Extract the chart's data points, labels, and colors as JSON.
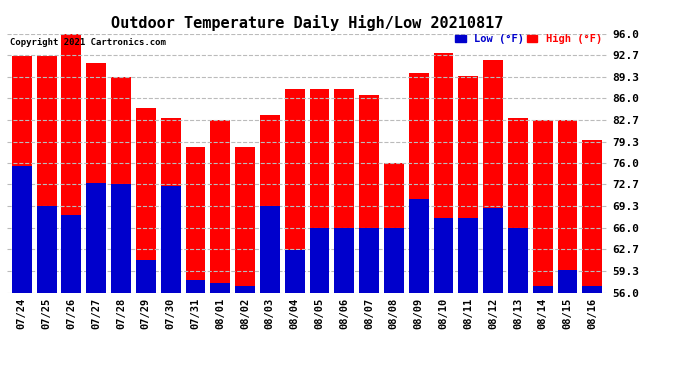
{
  "title": "Outdoor Temperature Daily High/Low 20210817",
  "copyright_text": "Copyright 2021 Cartronics.com",
  "legend_low_label": "Low (°F)",
  "legend_high_label": "High (°F)",
  "dates": [
    "07/24",
    "07/25",
    "07/26",
    "07/27",
    "07/28",
    "07/29",
    "07/30",
    "07/31",
    "08/01",
    "08/02",
    "08/03",
    "08/04",
    "08/05",
    "08/06",
    "08/07",
    "08/08",
    "08/09",
    "08/10",
    "08/11",
    "08/12",
    "08/13",
    "08/14",
    "08/15",
    "08/16"
  ],
  "high_values": [
    92.5,
    92.5,
    96.0,
    91.5,
    89.3,
    84.5,
    83.0,
    78.5,
    82.7,
    78.5,
    83.5,
    87.5,
    87.5,
    87.5,
    86.5,
    76.0,
    90.0,
    93.0,
    89.5,
    92.0,
    83.0,
    82.7,
    82.7,
    79.5
  ],
  "low_values": [
    75.5,
    69.3,
    68.0,
    73.0,
    72.7,
    61.0,
    72.5,
    58.0,
    57.5,
    57.0,
    69.3,
    62.5,
    66.0,
    66.0,
    66.0,
    66.0,
    70.5,
    67.5,
    67.5,
    69.0,
    66.0,
    57.0,
    59.5,
    57.0
  ],
  "ylim_min": 56.0,
  "ylim_max": 96.0,
  "yticks": [
    56.0,
    59.3,
    62.7,
    66.0,
    69.3,
    72.7,
    76.0,
    79.3,
    82.7,
    86.0,
    89.3,
    92.7,
    96.0
  ],
  "high_color": "#ff0000",
  "low_color": "#0000cc",
  "background_color": "#ffffff",
  "grid_color": "#bbbbbb",
  "title_fontsize": 11,
  "bar_width": 0.8,
  "figsize": [
    6.9,
    3.75
  ],
  "dpi": 100
}
